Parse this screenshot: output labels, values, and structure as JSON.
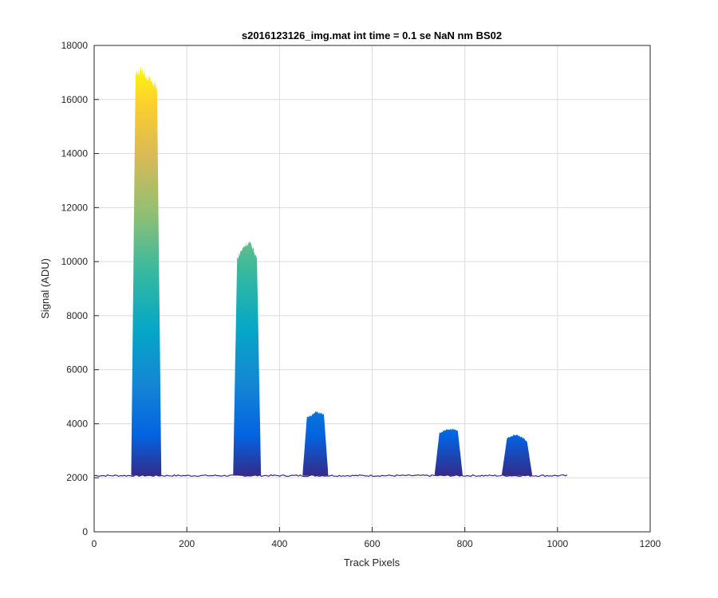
{
  "chart_data": {
    "type": "line",
    "title": "s2016123126_img.mat int time = 0.1 se  NaN nm BS02",
    "xlabel": "Track Pixels",
    "ylabel": "Signal (ADU)",
    "xlim": [
      0,
      1200
    ],
    "ylim": [
      0,
      18000
    ],
    "xticks": [
      0,
      200,
      400,
      600,
      800,
      1000,
      1200
    ],
    "yticks": [
      0,
      2000,
      4000,
      6000,
      8000,
      10000,
      12000,
      14000,
      16000,
      18000
    ],
    "xtick_labels": [
      "0",
      "200",
      "400",
      "600",
      "800",
      "1000",
      "1200"
    ],
    "ytick_labels": [
      "0",
      "2000",
      "4000",
      "6000",
      "8000",
      "10000",
      "12000",
      "14000",
      "16000",
      "18000"
    ],
    "grid": true,
    "legend": "none",
    "colormap": "parula",
    "baseline": 2080,
    "x_range": [
      1,
      1024
    ],
    "peaks": [
      {
        "x_start": 80,
        "x_end": 145,
        "values": [
          2150,
          16900,
          17100,
          17000,
          16800,
          16600,
          16500,
          2150
        ]
      },
      {
        "x_start": 300,
        "x_end": 360,
        "values": [
          2150,
          10100,
          10400,
          10600,
          10700,
          10500,
          10100,
          2150
        ]
      },
      {
        "x_start": 450,
        "x_end": 505,
        "values": [
          2150,
          4250,
          4300,
          4450,
          4400,
          4350,
          2150
        ]
      },
      {
        "x_start": 735,
        "x_end": 795,
        "values": [
          2150,
          3650,
          3750,
          3800,
          3800,
          3700,
          2150
        ]
      },
      {
        "x_start": 880,
        "x_end": 945,
        "values": [
          2150,
          3450,
          3550,
          3600,
          3500,
          3350,
          2150
        ]
      }
    ]
  }
}
